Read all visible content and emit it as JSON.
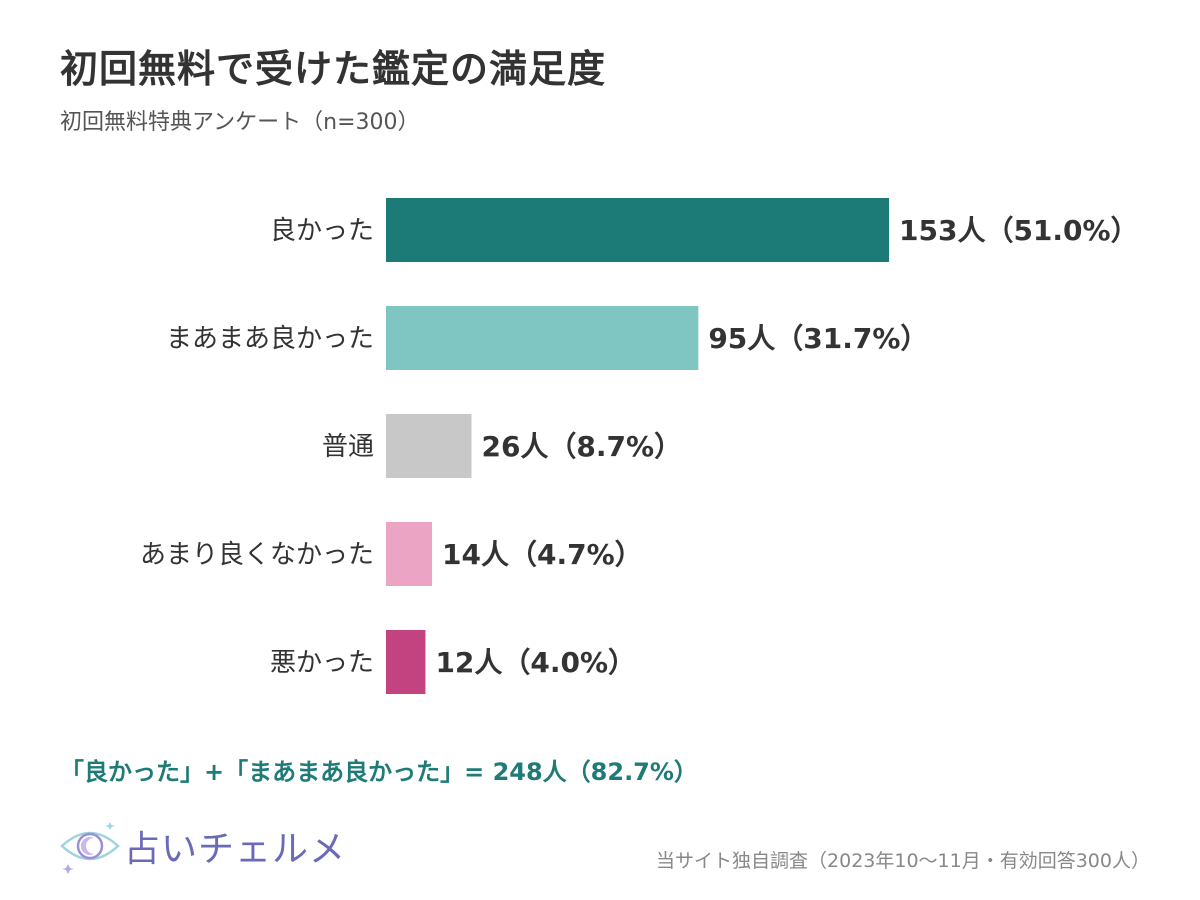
{
  "title": "初回無料で受けた鑑定の満足度",
  "subtitle": "初回無料特典アンケート（n=300）",
  "chart_data": {
    "type": "bar",
    "orientation": "horizontal",
    "categories": [
      "良かった",
      "まあまあ良かった",
      "普通",
      "あまり良くなかった",
      "悪かった"
    ],
    "values": [
      153,
      95,
      26,
      14,
      12
    ],
    "percents": [
      51.0,
      31.7,
      8.7,
      4.7,
      4.0
    ],
    "data_labels": [
      "153人（51.0%）",
      "95人（31.7%）",
      "26人（8.7%）",
      "14人（4.7%）",
      "12人（4.0%）"
    ],
    "colors": [
      "#1d7b77",
      "#7fc6c2",
      "#c8c8c8",
      "#eba4c4",
      "#c2437f"
    ],
    "xlim": [
      0,
      153
    ],
    "grid": false,
    "legend": "none"
  },
  "summary": "「良かった」+「まあまあ良かった」= 248人（82.7%）",
  "logo": {
    "text": "占いチェルメ",
    "icon": "eye-moon-logo-icon"
  },
  "source": "当サイト独自調査（2023年10〜11月・有効回答300人）"
}
